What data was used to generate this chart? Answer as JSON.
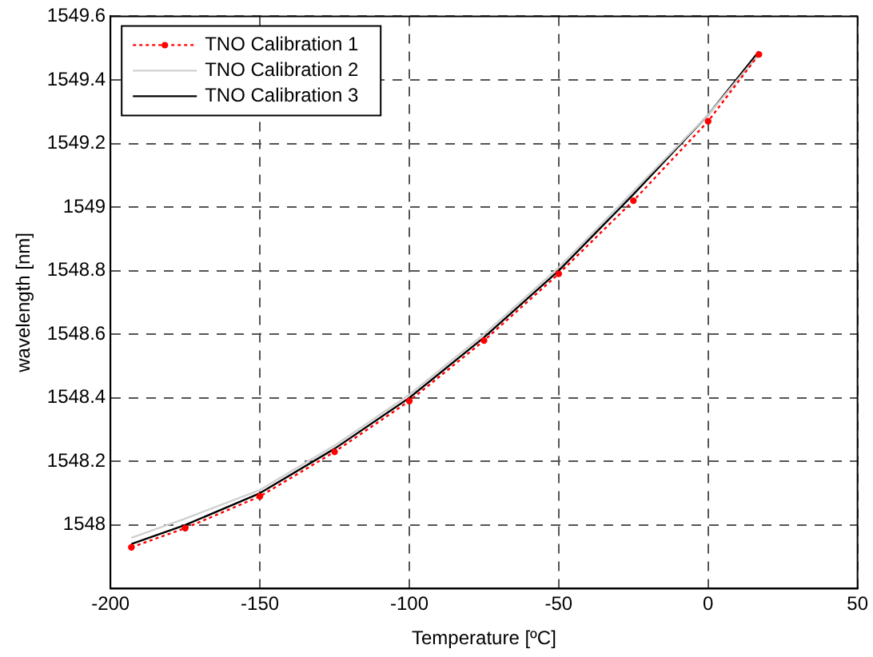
{
  "chart_data": {
    "type": "line",
    "xlabel": "Temperature [ºC]",
    "ylabel": "wavelength [nm]",
    "xlim": [
      -200,
      50
    ],
    "xticks": [
      -200,
      -150,
      -100,
      -50,
      0,
      50
    ],
    "ylim": [
      1547.8,
      1549.6
    ],
    "yticks": [
      1548,
      1548.2,
      1548.4,
      1548.6,
      1548.8,
      1549,
      1549.2,
      1549.4,
      1549.6
    ],
    "grid": true,
    "legend": "top left",
    "x": [
      -193,
      -175,
      -150,
      -125,
      -100,
      -75,
      -50,
      -25,
      0,
      17
    ],
    "series": [
      {
        "name": "TNO Calibration 1",
        "color": "#ff0000",
        "marker": "circle",
        "line_style": "dotted",
        "values": [
          1547.93,
          1547.99,
          1548.09,
          1548.23,
          1548.39,
          1548.58,
          1548.79,
          1549.02,
          1549.27,
          1549.48
        ]
      },
      {
        "name": "TNO Calibration 2",
        "color": "#d0d0d0",
        "line_style": "solid",
        "values": [
          1547.96,
          1548.02,
          1548.11,
          1548.25,
          1548.41,
          1548.6,
          1548.81,
          1549.05,
          1549.29,
          1549.48
        ]
      },
      {
        "name": "TNO Calibration 3",
        "color": "#000000",
        "line_style": "solid",
        "values": [
          1547.94,
          1548.0,
          1548.1,
          1548.24,
          1548.4,
          1548.59,
          1548.8,
          1549.04,
          1549.29,
          1549.49
        ]
      }
    ]
  }
}
